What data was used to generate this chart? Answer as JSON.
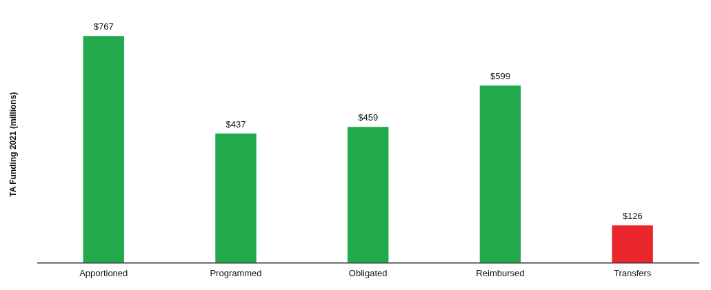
{
  "chart_data": {
    "type": "bar",
    "ylabel": "TA Funding 2021 (millions)",
    "categories": [
      "Apportioned",
      "Programmed",
      "Obligated",
      "Reimbursed",
      "Transfers"
    ],
    "values": [
      767,
      437,
      459,
      599,
      126
    ],
    "colors": [
      "#22a94b",
      "#22a94b",
      "#22a94b",
      "#22a94b",
      "#e8262b"
    ],
    "value_labels": [
      "$767",
      "$437",
      "$459",
      "$599",
      "$126"
    ],
    "grid": false,
    "legend": false
  }
}
